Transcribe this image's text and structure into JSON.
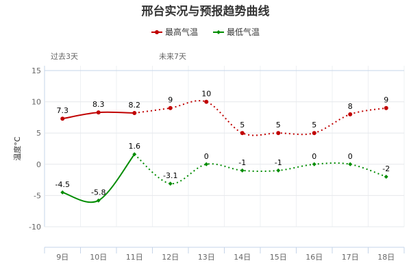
{
  "chart_data": {
    "type": "line",
    "title": "邢台实况与预报趋势曲线",
    "ylabel": "温度°C",
    "xlabel": "",
    "categories": [
      "9日",
      "10日",
      "11日",
      "12日",
      "13日",
      "14日",
      "15日",
      "16日",
      "17日",
      "18日"
    ],
    "ylim": [
      -10,
      15
    ],
    "yticks": [
      15,
      10,
      5,
      0,
      -5,
      -10
    ],
    "grid": true,
    "legend_position": "top-center",
    "period_labels": {
      "past": "过去3天",
      "future": "未来7天"
    },
    "observed_count": 3,
    "series": [
      {
        "name": "最高气温",
        "color": "#c00000",
        "values": [
          7.3,
          8.3,
          8.2,
          9,
          10,
          5,
          5,
          5,
          8,
          9
        ]
      },
      {
        "name": "最低气温",
        "color": "#008c00",
        "values": [
          -4.5,
          -5.8,
          1.6,
          -3.1,
          0,
          -1,
          -1,
          0,
          0,
          -2
        ]
      }
    ]
  }
}
